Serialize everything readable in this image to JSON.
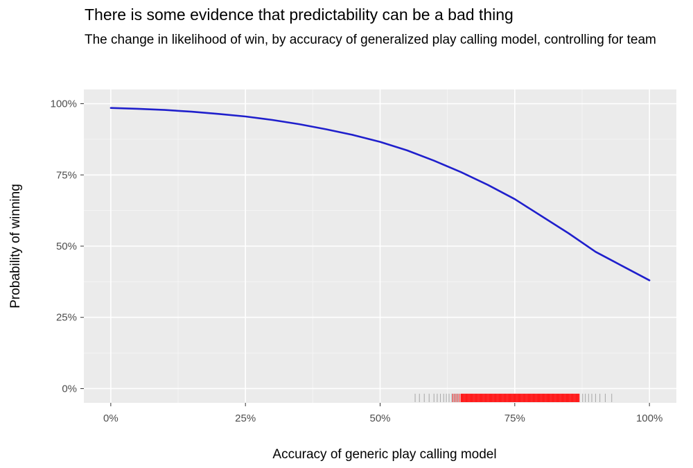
{
  "chart_data": {
    "type": "line",
    "title": "There is some evidence that predictability can be a bad thing",
    "subtitle": "The change in likelihood of win, by accuracy of generalized play calling model, controlling for team",
    "xlabel": "Accuracy of generic play calling model",
    "ylabel": "Probability of winning",
    "xlim": [
      -0.05,
      1.05
    ],
    "ylim": [
      -0.05,
      1.05
    ],
    "x_ticks": [
      0,
      0.25,
      0.5,
      0.75,
      1.0
    ],
    "x_tick_labels": [
      "0%",
      "25%",
      "50%",
      "75%",
      "100%"
    ],
    "y_ticks": [
      0,
      0.25,
      0.5,
      0.75,
      1.0
    ],
    "y_tick_labels": [
      "0%",
      "25%",
      "50%",
      "75%",
      "100%"
    ],
    "grid": true,
    "series": [
      {
        "color": "#1f1fcc",
        "x": [
          0,
          0.05,
          0.1,
          0.15,
          0.2,
          0.25,
          0.3,
          0.35,
          0.4,
          0.45,
          0.5,
          0.55,
          0.6,
          0.65,
          0.7,
          0.75,
          0.8,
          0.85,
          0.9,
          0.95,
          1.0
        ],
        "y": [
          0.985,
          0.982,
          0.978,
          0.972,
          0.964,
          0.955,
          0.943,
          0.928,
          0.91,
          0.89,
          0.866,
          0.836,
          0.8,
          0.76,
          0.715,
          0.665,
          0.605,
          0.545,
          0.48,
          0.43,
          0.38
        ]
      }
    ],
    "rug": {
      "dense_color": "#ff1a1a",
      "sparse_color": "#a6a6a6",
      "dense_range": [
        0.65,
        0.87
      ],
      "sparse_x": [
        0.565,
        0.573,
        0.582,
        0.591,
        0.6,
        0.606,
        0.612,
        0.618,
        0.623,
        0.628,
        0.633,
        0.637,
        0.641,
        0.645,
        0.876,
        0.881,
        0.887,
        0.893,
        0.9,
        0.908,
        0.918,
        0.93
      ],
      "red_x": [
        0.635,
        0.639,
        0.643,
        0.647
      ]
    }
  }
}
